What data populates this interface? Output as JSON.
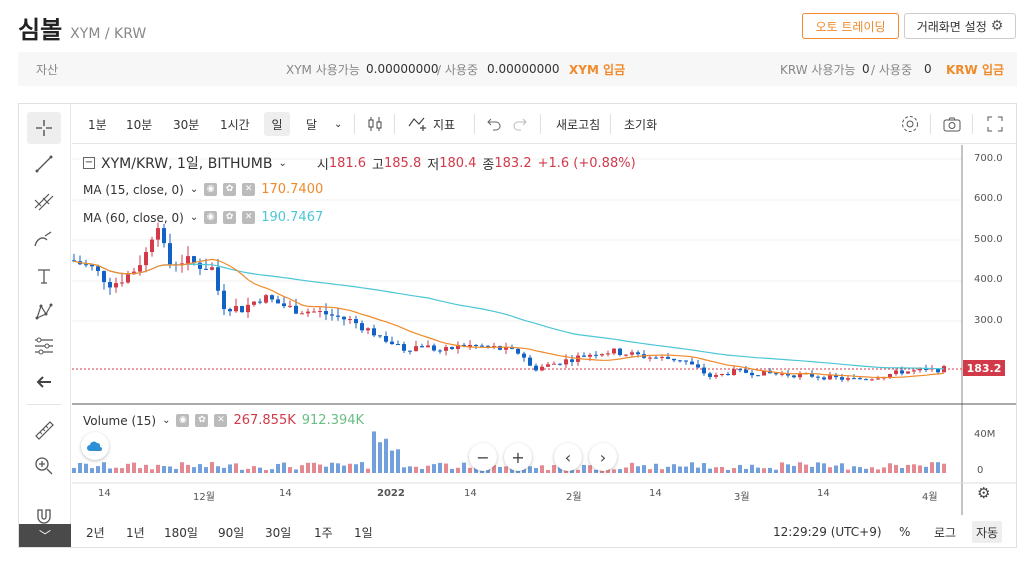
{
  "header": {
    "coin_name": "심볼",
    "pair": "XYM / KRW",
    "auto_trading_label": "오토 트레이딩",
    "screen_setting_label": "거래화면 설정"
  },
  "asset_bar": {
    "asset_label": "자산",
    "xym_available_label": "XYM 사용가능",
    "xym_available": "0.00000000",
    "xym_in_use_label": "/ 사용중",
    "xym_in_use": "0.00000000",
    "xym_deposit": "XYM 입금",
    "krw_available_label": "KRW 사용가능",
    "krw_available": "0",
    "krw_in_use_label": "/ 사용중",
    "krw_in_use": "0",
    "krw_deposit": "KRW 입금"
  },
  "toolbar": {
    "intervals": [
      "1분",
      "10분",
      "30분",
      "1시간",
      "일",
      "달"
    ],
    "active_interval": "일",
    "indicator_label": "지표",
    "refresh_label": "새로고침",
    "reset_label": "초기화"
  },
  "legend": {
    "symbol": "XYM/KRW, 1일, BITHUMB",
    "open_label": "시",
    "open": "181.6",
    "high_label": "고",
    "high": "185.8",
    "low_label": "저",
    "low": "180.4",
    "close_label": "종",
    "close": "183.2",
    "change": "+1.6 (+0.88%)",
    "ma15_label": "MA (15, close, 0)",
    "ma15_value": "170.7400",
    "ma60_label": "MA (60, close, 0)",
    "ma60_value": "190.7467",
    "volume_label": "Volume (15)",
    "volume_value1": "267.855K",
    "volume_value2": "912.394K"
  },
  "price_axis": [
    "700.0",
    "600.0",
    "500.0",
    "400.0",
    "300.0"
  ],
  "volume_axis": [
    "40M",
    "0"
  ],
  "last_price": "183.2",
  "time_axis": [
    "14",
    "12월",
    "14",
    "2022",
    "14",
    "2월",
    "14",
    "3월",
    "14",
    "4월"
  ],
  "bottom": {
    "ranges": [
      "2년",
      "1년",
      "180일",
      "90일",
      "30일",
      "1주",
      "1일"
    ],
    "clock": "12:29:29 (UTC+9)",
    "percent_label": "%",
    "log_label": "로그",
    "auto_label": "자동"
  },
  "colors": {
    "up": "#d23a4a",
    "down": "#1261c4",
    "ma15": "#f08a2a",
    "ma60": "#4cc6d6",
    "accent": "#f08a2a"
  }
}
